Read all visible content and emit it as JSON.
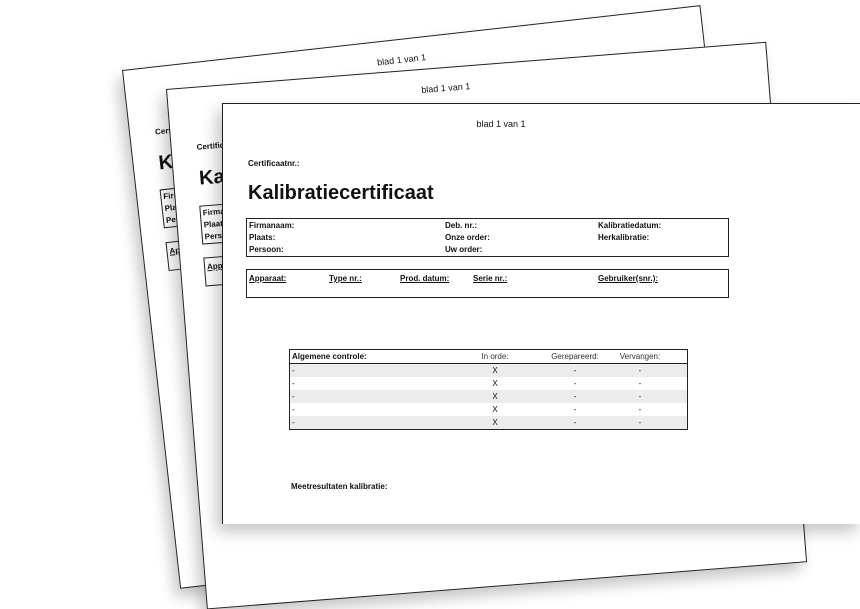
{
  "page_label": "blad 1 van 1",
  "certificate_number_label": "Certificaatnr.:",
  "title": "Kalibratiecertificaat",
  "customer_box": {
    "col1": [
      "Firmanaam:",
      "Plaats:",
      "Persoon:"
    ],
    "col2": [
      "Deb. nr.:",
      "Onze order:",
      "Uw order:"
    ],
    "col3": [
      "Kalibratiedatum:",
      "Herkalibratie:"
    ]
  },
  "device_box": {
    "headers": [
      "Apparaat:",
      "Type nr.:",
      "Prod. datum:",
      "Serie nr.:",
      "Gebruiker(snr.):"
    ]
  },
  "general_check": {
    "headers": [
      "Algemene controle:",
      "In orde:",
      "Gerepareerd:",
      "Vervangen:"
    ],
    "rows": [
      [
        "-",
        "X",
        "-",
        "-"
      ],
      [
        "-",
        "X",
        "-",
        "-"
      ],
      [
        "-",
        "X",
        "-",
        "-"
      ],
      [
        "-",
        "X",
        "-",
        "-"
      ],
      [
        "-",
        "X",
        "-",
        "-"
      ]
    ]
  },
  "measurement_results_label": "Meetresultaten kalibratie:"
}
